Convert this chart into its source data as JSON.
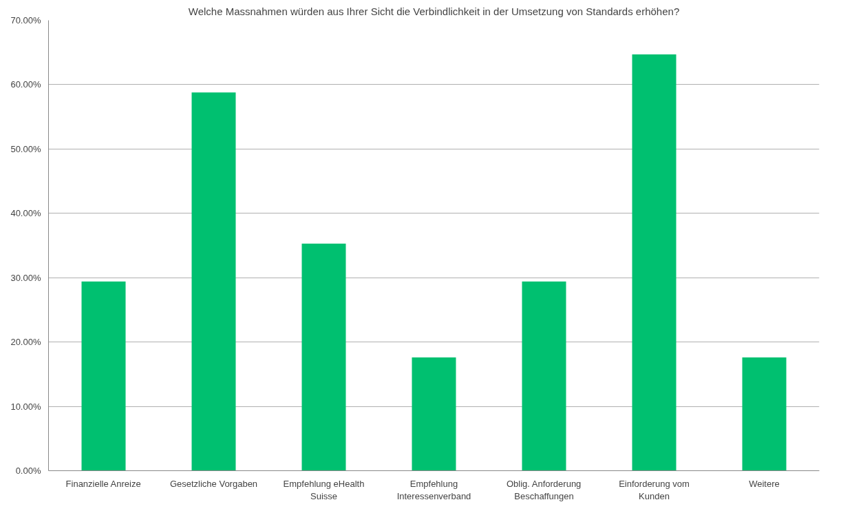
{
  "chart_data": {
    "type": "bar",
    "title": "Welche Massnahmen würden aus Ihrer Sicht die Verbindlichkeit in der Umsetzung von Standards erhöhen?",
    "categories": [
      "Finanzielle Anreize",
      "Gesetzliche Vorgaben",
      "Empfehlung eHealth Suisse",
      "Empfehlung Interessenverband",
      "Oblig. Anforderung Beschaffungen",
      "Einforderung vom Kunden",
      "Weitere"
    ],
    "values": [
      29.4,
      58.8,
      35.3,
      17.6,
      29.4,
      64.7,
      17.6
    ],
    "color": "#00c070",
    "ylim": [
      0,
      70
    ],
    "yticks": [
      {
        "value": 0,
        "label": "0.00%"
      },
      {
        "value": 10,
        "label": "10.00%"
      },
      {
        "value": 20,
        "label": "20.00%"
      },
      {
        "value": 30,
        "label": "30.00%"
      },
      {
        "value": 40,
        "label": "40.00%"
      },
      {
        "value": 50,
        "label": "50.00%"
      },
      {
        "value": 60,
        "label": "60.00%"
      },
      {
        "value": 70,
        "label": "70.00%"
      }
    ],
    "grid": "y"
  }
}
